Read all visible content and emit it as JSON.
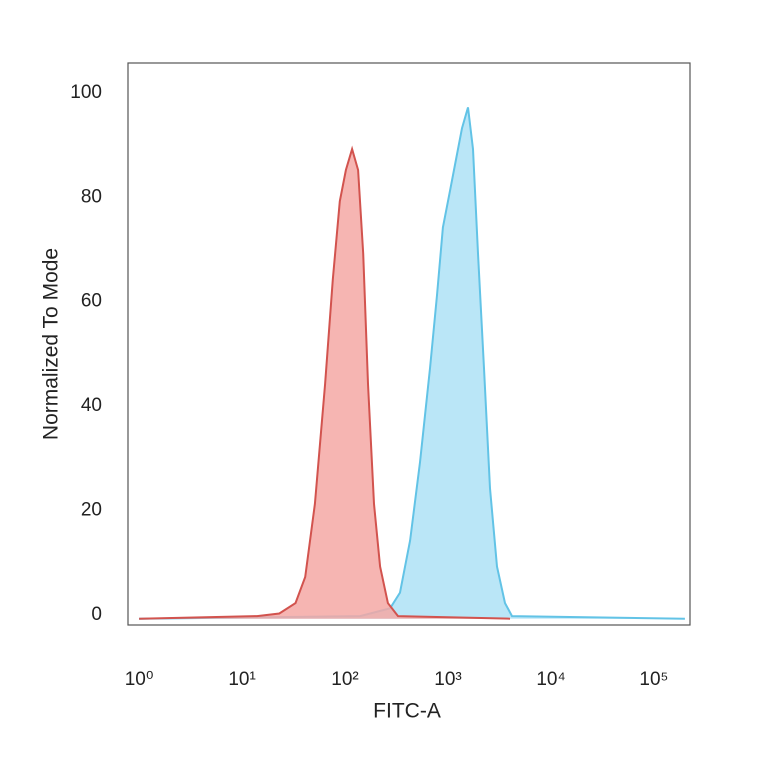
{
  "chart_data": {
    "type": "area",
    "x_axis_label": "FITC-A",
    "y_axis_label": "Normalized To Mode",
    "xscale": "log",
    "xlim": [
      0.78,
      224000
    ],
    "ylim": [
      -1.2,
      106.5
    ],
    "xticks": [
      {
        "value": 1,
        "label": "10⁰"
      },
      {
        "value": 10,
        "label": "10¹"
      },
      {
        "value": 100,
        "label": "10²"
      },
      {
        "value": 1000,
        "label": "10³"
      },
      {
        "value": 10000,
        "label": "10⁴"
      },
      {
        "value": 100000,
        "label": "10⁵"
      }
    ],
    "yticks": [
      0,
      20,
      40,
      60,
      80,
      100
    ],
    "series": [
      {
        "color": "#62c3e6",
        "fill": "#aee2f6",
        "x": [
          1,
          140,
          274,
          342,
          428,
          535,
          668,
          781,
          893,
          1045,
          1196,
          1368,
          1563,
          1749,
          1955,
          2238,
          2560,
          2992,
          3575,
          4180,
          200000
        ],
        "values": [
          0,
          0.5,
          2,
          5,
          15,
          30,
          48,
          62,
          75,
          82,
          88,
          94,
          98,
          90,
          70,
          48,
          25,
          10,
          3,
          0.5,
          0
        ]
      },
      {
        "color": "#d2534e",
        "fill": "#f4a8a4",
        "x": [
          1,
          14,
          23,
          33,
          41,
          51,
          64,
          76,
          89,
          102,
          117,
          134,
          150,
          167,
          191,
          219,
          261,
          327,
          4000
        ],
        "values": [
          0,
          0.5,
          1,
          3,
          8,
          22,
          45,
          65,
          80,
          86,
          90,
          86,
          70,
          45,
          22,
          10,
          3,
          0.5,
          0
        ]
      }
    ]
  }
}
